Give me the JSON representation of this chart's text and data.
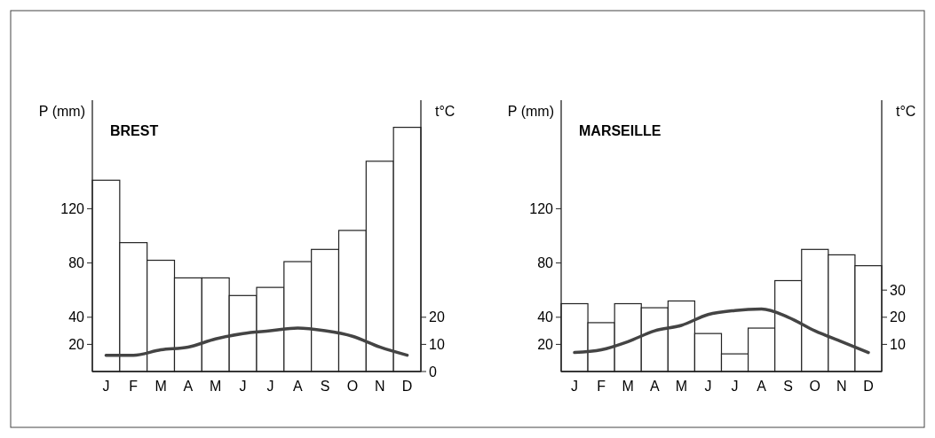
{
  "chart_data": [
    {
      "type": "bar",
      "title": "BREST",
      "ylabel": "P (mm)",
      "y2label": "t°C",
      "categories": [
        "J",
        "F",
        "M",
        "A",
        "M",
        "J",
        "J",
        "A",
        "S",
        "O",
        "N",
        "D"
      ],
      "series": [
        {
          "color": "#ffffff",
          "values": [
            141,
            95,
            82,
            69,
            69,
            56,
            62,
            81,
            90,
            104,
            155,
            180
          ]
        },
        {
          "type": "line",
          "axis": "y2",
          "color": "#444444",
          "values": [
            6,
            6,
            8,
            9,
            12,
            14,
            15,
            16,
            15,
            13,
            9,
            6
          ]
        }
      ],
      "ylim": [
        0,
        200
      ],
      "yticks": [
        20,
        40,
        80,
        120
      ],
      "y2lim": [
        0,
        100
      ],
      "y2ticks": [
        0,
        10,
        20
      ],
      "grid": false,
      "marker": "none",
      "line_style": "solid"
    },
    {
      "type": "bar",
      "title": "MARSEILLE",
      "ylabel": "P (mm)",
      "y2label": "t°C",
      "categories": [
        "J",
        "F",
        "M",
        "A",
        "M",
        "J",
        "J",
        "A",
        "S",
        "O",
        "N",
        "D"
      ],
      "series": [
        {
          "color": "#ffffff",
          "values": [
            50,
            36,
            50,
            47,
            52,
            28,
            13,
            32,
            67,
            90,
            86,
            78
          ]
        },
        {
          "type": "line",
          "axis": "y2",
          "color": "#444444",
          "values": [
            7,
            8,
            11,
            15,
            17,
            21,
            22.5,
            23,
            20,
            15,
            11,
            7
          ]
        }
      ],
      "ylim": [
        0,
        200
      ],
      "yticks": [
        20,
        40,
        80,
        120
      ],
      "y2lim": [
        0,
        100
      ],
      "y2ticks": [
        10,
        20,
        30
      ],
      "grid": false,
      "marker": "none",
      "line_style": "solid"
    }
  ]
}
